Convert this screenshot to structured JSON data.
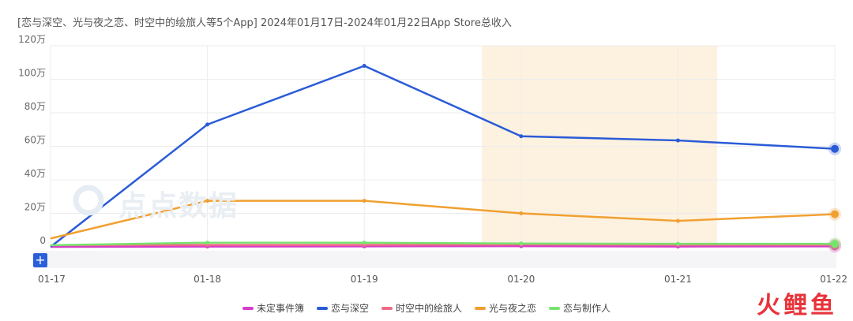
{
  "title": "[恋与深空、光与夜之恋、时空中的绘旅人等5个App]  2024年01月17日-2024年01月22日App Store总收入",
  "watermark": "点点数据",
  "brand": "火鲤鱼",
  "add_label": "+",
  "chart_data": {
    "type": "line",
    "title": "[恋与深空、光与夜之恋、时空中的绘旅人等5个App]  2024年01月17日-2024年01月22日App Store总收入",
    "categories": [
      "01-17",
      "01-18",
      "01-19",
      "01-20",
      "01-21",
      "01-22"
    ],
    "yticks": [
      "0",
      "20万",
      "40万",
      "60万",
      "80万",
      "100万",
      "120万"
    ],
    "ylim": [
      0,
      1200000
    ],
    "grid": true,
    "legend_position": "bottom",
    "highlight_range": [
      "01-20",
      "01-21"
    ],
    "series": [
      {
        "name": "未定事件簿",
        "color": "#d63ec9",
        "values": [
          0,
          2000,
          3000,
          4000,
          2000,
          3000
        ]
      },
      {
        "name": "恋与深空",
        "color": "#2a5bd7",
        "values": [
          0,
          730000,
          1080000,
          660000,
          635000,
          585000
        ]
      },
      {
        "name": "时空中的绘旅人",
        "color": "#f06b86",
        "values": [
          10000,
          12000,
          12000,
          14000,
          12000,
          12000
        ]
      },
      {
        "name": "光与夜之恋",
        "color": "#f0a030",
        "values": [
          50000,
          275000,
          275000,
          200000,
          155000,
          195000
        ]
      },
      {
        "name": "恋与制作人",
        "color": "#77e36f",
        "values": [
          10000,
          25000,
          25000,
          20000,
          18000,
          18000
        ]
      }
    ]
  }
}
